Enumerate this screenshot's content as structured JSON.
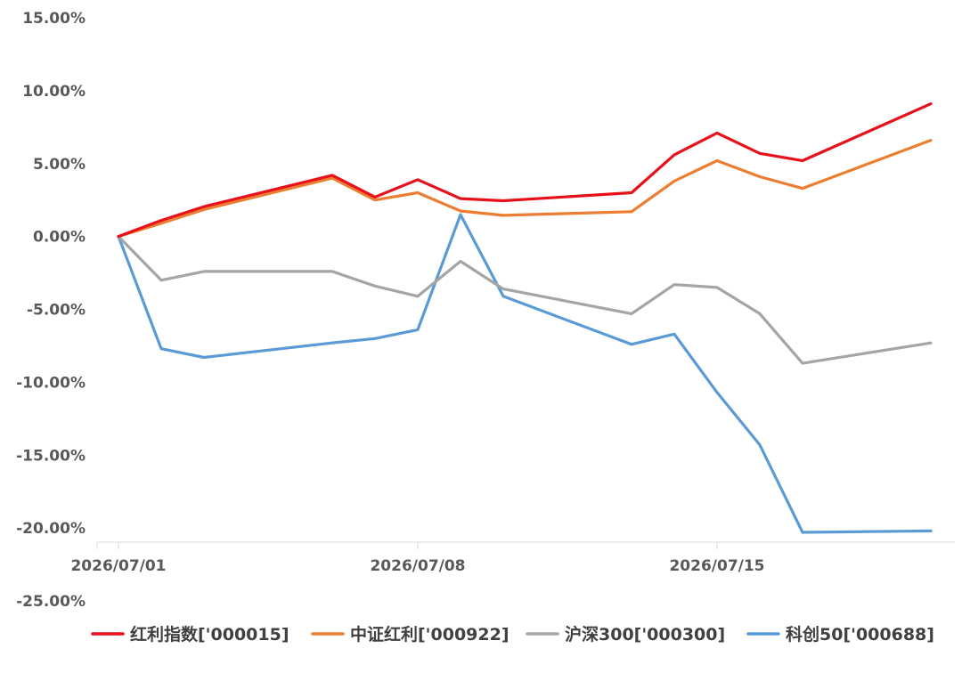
{
  "chart_data": {
    "type": "line",
    "title": "",
    "xlabel": "",
    "ylabel": "",
    "ylim": [
      -25,
      15
    ],
    "yticks": [
      15,
      10,
      5,
      0,
      -5,
      -10,
      -15,
      -20,
      -25
    ],
    "ytick_labels": [
      "15.00%",
      "10.00%",
      "5.00%",
      "0.00%",
      "-5.00%",
      "-10.00%",
      "-15.00%",
      "-20.00%",
      "-25.00%"
    ],
    "xlim": [
      "2026/07/01",
      "2026/07/21"
    ],
    "xtick_dates": [
      "2026/07/01",
      "2026/07/08",
      "2026/07/15"
    ],
    "xtick_labels": [
      "2026/07/01",
      "2026/07/08",
      "2026/07/15"
    ],
    "grid": false,
    "legend": "bottom",
    "x": [
      "2026/07/01",
      "2026/07/02",
      "2026/07/03",
      "2026/07/06",
      "2026/07/07",
      "2026/07/08",
      "2026/07/09",
      "2026/07/10",
      "2026/07/13",
      "2026/07/14",
      "2026/07/15",
      "2026/07/16",
      "2026/07/17",
      "2026/07/20"
    ],
    "series": [
      {
        "name": "红利指数['000015]",
        "color": "#E8111B",
        "values": [
          0.0,
          1.1,
          2.05,
          4.2,
          2.7,
          3.9,
          2.6,
          2.45,
          3.0,
          5.6,
          7.1,
          5.7,
          5.2,
          9.1
        ]
      },
      {
        "name": "中证红利['000922]",
        "color": "#ED7D31",
        "values": [
          0.0,
          0.9,
          1.85,
          4.0,
          2.5,
          3.0,
          1.75,
          1.45,
          1.7,
          3.8,
          5.2,
          4.1,
          3.3,
          6.6
        ]
      },
      {
        "name": "沪深300['000300]",
        "color": "#A5A5A5",
        "values": [
          0.0,
          -3.0,
          -2.4,
          -2.4,
          -3.4,
          -4.1,
          -1.7,
          -3.6,
          -5.3,
          -3.3,
          -3.5,
          -5.3,
          -8.7,
          -7.3
        ]
      },
      {
        "name": "科创50['000688]",
        "color": "#5B9BD5",
        "values": [
          0.0,
          -7.7,
          -8.3,
          -7.3,
          -7.0,
          -6.4,
          1.5,
          -4.1,
          -7.4,
          -6.7,
          -10.7,
          -14.3,
          -20.3,
          -20.2
        ]
      }
    ]
  }
}
